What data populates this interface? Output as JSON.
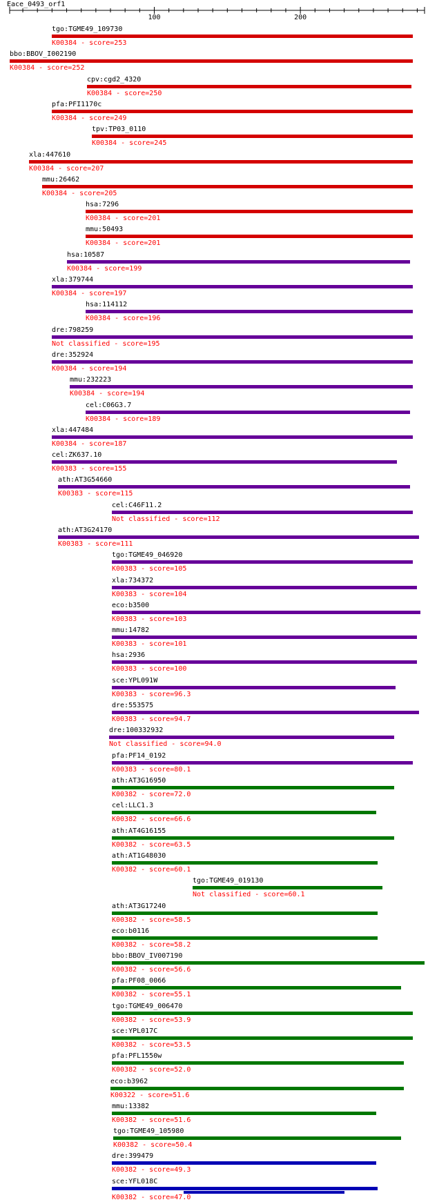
{
  "query_name": "Eace_0493_orf1",
  "axis": {
    "min": 1,
    "max": 285,
    "ticks": [
      100,
      200
    ]
  },
  "colors": {
    "red": "#d40000",
    "purple": "#660099",
    "green": "#007700",
    "blue": "#0000b4",
    "label_red": "#ff0000"
  },
  "hits": [
    {
      "name": "tgo:TGME49_109730",
      "desc": "K00384 - score=253",
      "start": 30,
      "end": 277,
      "color": "red"
    },
    {
      "name": "bbo:BBOV_I002190",
      "desc": "K00384 - score=252",
      "start": 1,
      "end": 277,
      "color": "red"
    },
    {
      "name": "cpv:cgd2_4320",
      "desc": "K00384 - score=250",
      "start": 54,
      "end": 276,
      "color": "red"
    },
    {
      "name": "pfa:PFI1170c",
      "desc": "K00384 - score=249",
      "start": 30,
      "end": 277,
      "color": "red"
    },
    {
      "name": "tpv:TP03_0110",
      "desc": "K00384 - score=245",
      "start": 57,
      "end": 277,
      "color": "red"
    },
    {
      "name": "xla:447610",
      "desc": "K00384 - score=207",
      "start": 14,
      "end": 277,
      "color": "red"
    },
    {
      "name": "mmu:26462",
      "desc": "K00384 - score=205",
      "start": 23,
      "end": 277,
      "color": "red"
    },
    {
      "name": "hsa:7296",
      "desc": "K00384 - score=201",
      "start": 53,
      "end": 277,
      "color": "red"
    },
    {
      "name": "mmu:50493",
      "desc": "K00384 - score=201",
      "start": 53,
      "end": 277,
      "color": "red"
    },
    {
      "name": "hsa:10587",
      "desc": "K00384 - score=199",
      "start": 40,
      "end": 275,
      "color": "purple"
    },
    {
      "name": "xla:379744",
      "desc": "K00384 - score=197",
      "start": 30,
      "end": 277,
      "color": "purple"
    },
    {
      "name": "hsa:114112",
      "desc": "K00384 - score=196",
      "start": 53,
      "end": 277,
      "color": "purple"
    },
    {
      "name": "dre:798259",
      "desc": "Not classified - score=195",
      "start": 30,
      "end": 277,
      "color": "purple"
    },
    {
      "name": "dre:352924",
      "desc": "K00384 - score=194",
      "start": 30,
      "end": 277,
      "color": "purple"
    },
    {
      "name": "mmu:232223",
      "desc": "K00384 - score=194",
      "start": 42,
      "end": 277,
      "color": "purple"
    },
    {
      "name": "cel:C06G3.7",
      "desc": "K00384 - score=189",
      "start": 53,
      "end": 275,
      "color": "purple"
    },
    {
      "name": "xla:447484",
      "desc": "K00384 - score=187",
      "start": 30,
      "end": 277,
      "color": "purple"
    },
    {
      "name": "cel:ZK637.10",
      "desc": "K00383 - score=155",
      "start": 30,
      "end": 266,
      "color": "purple"
    },
    {
      "name": "ath:AT3G54660",
      "desc": "K00383 - score=115",
      "start": 34,
      "end": 275,
      "color": "purple"
    },
    {
      "name": "cel:C46F11.2",
      "desc": "Not classified - score=112",
      "start": 71,
      "end": 277,
      "color": "purple"
    },
    {
      "name": "ath:AT3G24170",
      "desc": "K00383 - score=111",
      "start": 34,
      "end": 281,
      "color": "purple"
    },
    {
      "name": "tgo:TGME49_046920",
      "desc": "K00383 - score=105",
      "start": 71,
      "end": 277,
      "color": "purple"
    },
    {
      "name": "xla:734372",
      "desc": "K00383 - score=104",
      "start": 71,
      "end": 280,
      "color": "purple"
    },
    {
      "name": "eco:b3500",
      "desc": "K00383 - score=103",
      "start": 71,
      "end": 282,
      "color": "purple"
    },
    {
      "name": "mmu:14782",
      "desc": "K00383 - score=101",
      "start": 71,
      "end": 280,
      "color": "purple"
    },
    {
      "name": "hsa:2936",
      "desc": "K00383 - score=100",
      "start": 71,
      "end": 280,
      "color": "purple"
    },
    {
      "name": "sce:YPL091W",
      "desc": "K00383 - score=96.3",
      "start": 71,
      "end": 265,
      "color": "purple"
    },
    {
      "name": "dre:553575",
      "desc": "K00383 - score=94.7",
      "start": 71,
      "end": 281,
      "color": "purple"
    },
    {
      "name": "dre:100332932",
      "desc": "Not classified - score=94.0",
      "start": 69,
      "end": 264,
      "color": "purple"
    },
    {
      "name": "pfa:PF14_0192",
      "desc": "K00383 - score=80.1",
      "start": 71,
      "end": 277,
      "color": "purple"
    },
    {
      "name": "ath:AT3G16950",
      "desc": "K00382 - score=72.0",
      "start": 71,
      "end": 264,
      "color": "green"
    },
    {
      "name": "cel:LLC1.3",
      "desc": "K00382 - score=66.6",
      "start": 71,
      "end": 252,
      "color": "green"
    },
    {
      "name": "ath:AT4G16155",
      "desc": "K00382 - score=63.5",
      "start": 71,
      "end": 264,
      "color": "green"
    },
    {
      "name": "ath:AT1G48030",
      "desc": "K00382 - score=60.1",
      "start": 71,
      "end": 253,
      "color": "green"
    },
    {
      "name": "tgo:TGME49_019130",
      "desc": "Not classified - score=60.1",
      "start": 126,
      "end": 256,
      "color": "green"
    },
    {
      "name": "ath:AT3G17240",
      "desc": "K00382 - score=58.5",
      "start": 71,
      "end": 253,
      "color": "green"
    },
    {
      "name": "eco:b0116",
      "desc": "K00382 - score=58.2",
      "start": 71,
      "end": 253,
      "color": "green"
    },
    {
      "name": "bbo:BBOV_IV007190",
      "desc": "K00382 - score=56.6",
      "start": 71,
      "end": 285,
      "color": "green"
    },
    {
      "name": "pfa:PF08_0066",
      "desc": "K00382 - score=55.1",
      "start": 71,
      "end": 269,
      "color": "green"
    },
    {
      "name": "tgo:TGME49_006470",
      "desc": "K00382 - score=53.9",
      "start": 71,
      "end": 277,
      "color": "green"
    },
    {
      "name": "sce:YPL017C",
      "desc": "K00382 - score=53.5",
      "start": 71,
      "end": 277,
      "color": "green"
    },
    {
      "name": "pfa:PFL1550w",
      "desc": "K00382 - score=52.0",
      "start": 71,
      "end": 271,
      "color": "green"
    },
    {
      "name": "eco:b3962",
      "desc": "K00322 - score=51.6",
      "start": 70,
      "end": 271,
      "color": "green"
    },
    {
      "name": "mmu:13382",
      "desc": "K00382 - score=51.6",
      "start": 71,
      "end": 252,
      "color": "green"
    },
    {
      "name": "tgo:TGME49_105980",
      "desc": "K00382 - score=50.4",
      "start": 72,
      "end": 269,
      "color": "green"
    },
    {
      "name": "dre:399479",
      "desc": "K00382 - score=49.3",
      "start": 71,
      "end": 252,
      "color": "blue"
    },
    {
      "name": "sce:YFL018C",
      "desc": "K00382 - score=47.0",
      "start": 71,
      "end": 253,
      "color": "blue",
      "extra": {
        "start": 120,
        "end": 230
      }
    }
  ]
}
